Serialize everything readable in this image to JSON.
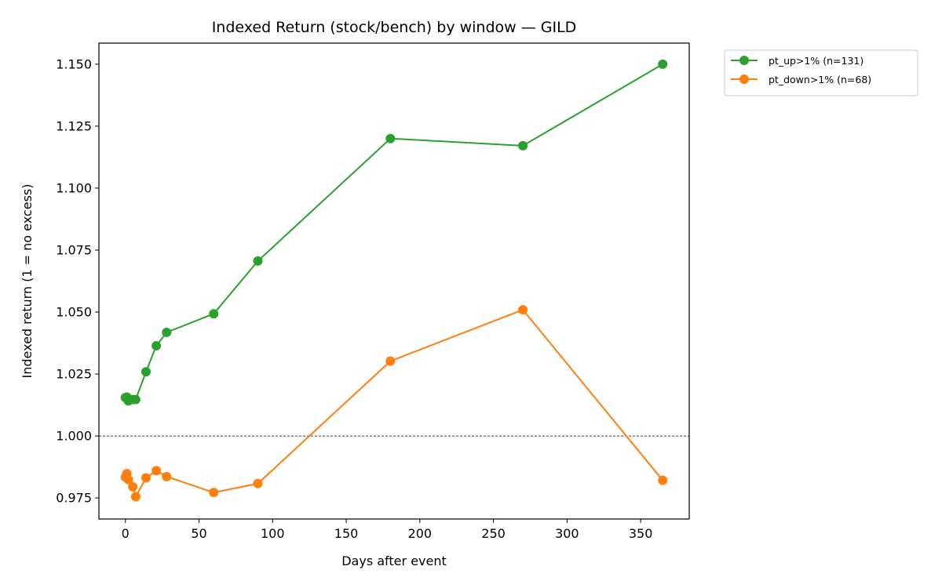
{
  "chart_data": {
    "type": "line",
    "title": "Indexed Return (stock/bench) by window — GILD",
    "xlabel": "Days after event",
    "ylabel": "Indexed return (1 = no excess)",
    "xlim": [
      -18,
      383
    ],
    "ylim": [
      0.9665,
      1.1585
    ],
    "xticks": [
      0,
      50,
      100,
      150,
      200,
      250,
      300,
      350
    ],
    "yticks": [
      0.975,
      1.0,
      1.025,
      1.05,
      1.075,
      1.1,
      1.125,
      1.15
    ],
    "ytick_labels": [
      "0.975",
      "1.000",
      "1.025",
      "1.050",
      "1.075",
      "1.100",
      "1.125",
      "1.150"
    ],
    "reference_line": {
      "y": 1.0,
      "style": "dashed",
      "color": "#000000"
    },
    "grid": false,
    "legend_position": "outside-top-right",
    "series": [
      {
        "name": "pt_up>1% (n=131)",
        "color": "#2ca02c",
        "x": [
          0,
          1,
          2,
          5,
          7,
          14,
          21,
          28,
          60,
          90,
          180,
          270,
          365
        ],
        "y": [
          1.0155,
          1.0157,
          1.0142,
          1.0147,
          1.0147,
          1.0259,
          1.0364,
          1.0418,
          1.0493,
          1.0706,
          1.12,
          1.1171,
          1.15
        ]
      },
      {
        "name": "pt_down>1% (n=68)",
        "color": "#ff7f0e",
        "x": [
          0,
          1,
          2,
          5,
          7,
          14,
          21,
          28,
          60,
          90,
          180,
          270,
          365
        ],
        "y": [
          0.9834,
          0.9848,
          0.9824,
          0.9795,
          0.9755,
          0.9831,
          0.986,
          0.9836,
          0.9772,
          0.9808,
          1.0302,
          1.0509,
          0.9821
        ]
      }
    ]
  }
}
